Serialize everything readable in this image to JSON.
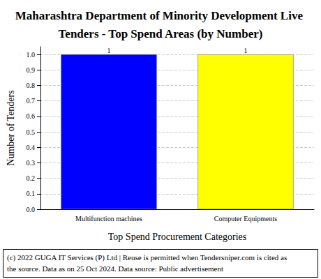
{
  "chart_data": {
    "type": "bar",
    "title": "Maharashtra Department of Minority Development Live Tenders - Top Spend Areas (by Number)",
    "x_label": "Top Spend Procurement Categories",
    "y_label": "Number of Tenders",
    "categories": [
      "Multifunction machines",
      "Computer Equipments"
    ],
    "values": [
      1,
      1
    ],
    "colors": [
      "#0000ff",
      "#ffff00"
    ],
    "ylim": [
      0,
      1.05
    ],
    "yticks": [
      {
        "value": 0,
        "label": "0.0"
      },
      0.1,
      0.2,
      0.3,
      0.4,
      0.5,
      0.6,
      0.7,
      0.8,
      0.9,
      {
        "value": 1,
        "label": "1.0"
      }
    ],
    "grid": true,
    "data_labels": true,
    "annotations": [
      "(c) 2022 GUGA IT Services (P) Ltd | Reuse is permitted when Tendersniper.com is cited as the source. Data as on 25 Oct 2024. Data source: Public advertisement"
    ]
  }
}
